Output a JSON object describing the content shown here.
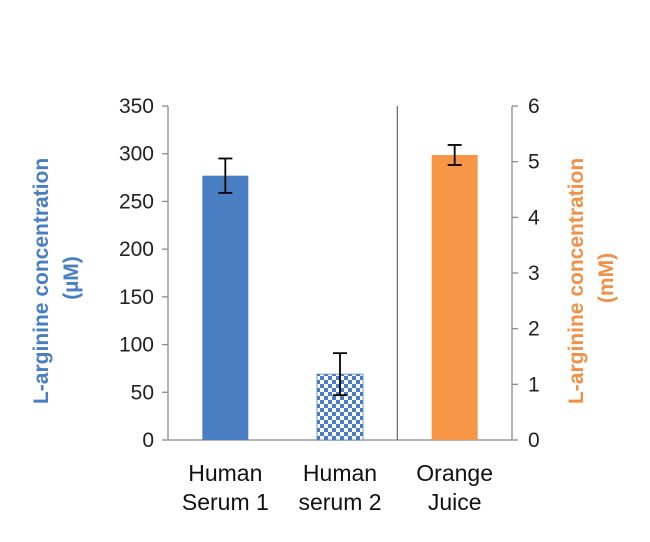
{
  "chart_data": {
    "type": "bar",
    "categories": [
      [
        "Human",
        "Serum 1"
      ],
      [
        "Human",
        "serum 2"
      ],
      [
        "Orange",
        "Juice"
      ]
    ],
    "left_axis": {
      "label_line1": "L-arginine concentration",
      "label_line2": "(µM)",
      "ylim": [
        0,
        350
      ],
      "ticks": [
        "0",
        "50",
        "100",
        "150",
        "200",
        "250",
        "300",
        "350"
      ],
      "color": "#4a7ec2"
    },
    "right_axis": {
      "label_line1": "L-arginine concentration",
      "label_line2": "(mM)",
      "ylim": [
        0,
        6
      ],
      "ticks": [
        "0",
        "1",
        "2",
        "3",
        "4",
        "5",
        "6"
      ],
      "color": "#f0914a"
    },
    "bars": [
      {
        "category_index": 0,
        "axis": "left",
        "value": 277,
        "error": 18,
        "fill": "#4a7ec2",
        "pattern": "solid"
      },
      {
        "category_index": 1,
        "axis": "left",
        "value": 69,
        "error": 22,
        "fill": "#4a7ec2",
        "pattern": "checker"
      },
      {
        "category_index": 2,
        "axis": "right",
        "value": 5.12,
        "error": 0.18,
        "fill": "#f79646",
        "pattern": "solid"
      }
    ],
    "divider_after_category": 1,
    "grid": false,
    "legend": "none"
  }
}
